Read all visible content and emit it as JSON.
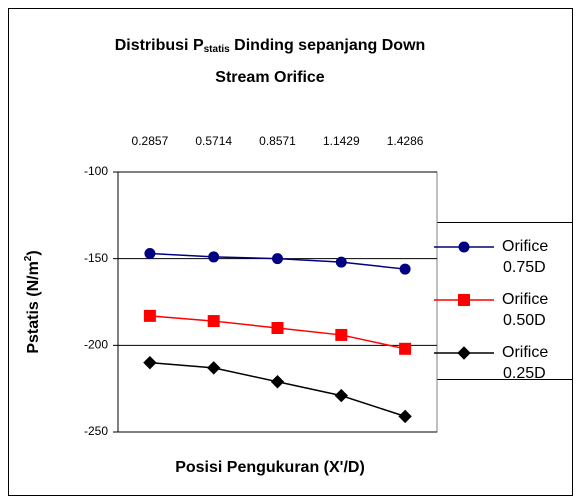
{
  "chart_data": {
    "type": "line",
    "title": [
      "Distribusi P",
      "statis",
      " Dinding sepanjang Down",
      "Stream Orifice"
    ],
    "ylabel": [
      "Pstatis (N/m",
      "2",
      ")"
    ],
    "xlabel": "Posisi Pengukuran (X'/D)",
    "categories": [
      "0.2857",
      "0.5714",
      "0.8571",
      "1.1429",
      "1.4286"
    ],
    "ylim": [
      -250,
      -100
    ],
    "yticks": [
      -250,
      -200,
      -150,
      -100
    ],
    "grid": true,
    "legend": "right",
    "series": [
      {
        "name": "Orifice 0.75D",
        "color": "#000080",
        "marker": "circle",
        "values": [
          -147,
          -149,
          -150,
          -152,
          -156
        ]
      },
      {
        "name": "Orifice 0.50D",
        "color": "#ff0000",
        "marker": "square",
        "values": [
          -183,
          -186,
          -190,
          -194,
          -202
        ]
      },
      {
        "name": "Orifice 0.25D",
        "color": "#000000",
        "marker": "diamond",
        "values": [
          -210,
          -213,
          -221,
          -229,
          -241
        ]
      }
    ]
  }
}
